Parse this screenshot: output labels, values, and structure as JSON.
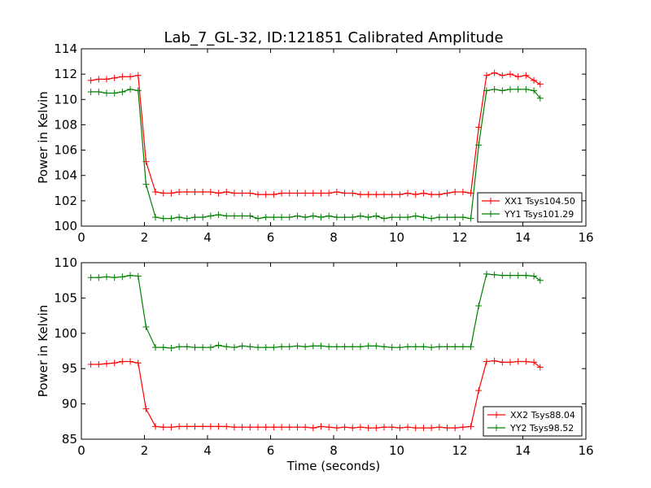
{
  "chart_data": [
    {
      "type": "line",
      "title": "Lab_7_GL-32, ID:121851 Calibrated Amplitude",
      "xlabel": "",
      "ylabel": "Power in Kelvin",
      "xlim": [
        0,
        16
      ],
      "ylim": [
        100,
        114
      ],
      "xticks": [
        "0",
        "2",
        "4",
        "6",
        "8",
        "10",
        "12",
        "14",
        "16"
      ],
      "yticks": [
        "100",
        "102",
        "104",
        "106",
        "108",
        "110",
        "112",
        "114"
      ],
      "grid": false,
      "legend_position": "lower-right",
      "x": [
        0.3,
        0.55,
        0.8,
        1.05,
        1.3,
        1.55,
        1.8,
        2.05,
        2.35,
        2.6,
        2.85,
        3.1,
        3.35,
        3.6,
        3.85,
        4.1,
        4.35,
        4.6,
        4.85,
        5.1,
        5.35,
        5.6,
        5.85,
        6.1,
        6.35,
        6.6,
        6.85,
        7.1,
        7.35,
        7.6,
        7.85,
        8.1,
        8.35,
        8.6,
        8.85,
        9.1,
        9.35,
        9.6,
        9.85,
        10.1,
        10.35,
        10.6,
        10.85,
        11.1,
        11.35,
        11.6,
        11.85,
        12.1,
        12.35,
        12.6,
        12.85,
        13.1,
        13.35,
        13.6,
        13.85,
        14.1,
        14.35,
        14.55
      ],
      "series": [
        {
          "name": "XX1 Tsys104.50",
          "color": "#ff0000",
          "values": [
            111.5,
            111.6,
            111.6,
            111.7,
            111.8,
            111.8,
            111.9,
            105.1,
            102.7,
            102.6,
            102.6,
            102.7,
            102.7,
            102.7,
            102.7,
            102.7,
            102.6,
            102.7,
            102.6,
            102.6,
            102.6,
            102.5,
            102.5,
            102.5,
            102.6,
            102.6,
            102.6,
            102.6,
            102.6,
            102.6,
            102.6,
            102.7,
            102.6,
            102.6,
            102.5,
            102.5,
            102.5,
            102.5,
            102.5,
            102.5,
            102.6,
            102.5,
            102.6,
            102.5,
            102.5,
            102.6,
            102.7,
            102.7,
            102.6,
            107.8,
            111.9,
            112.1,
            111.9,
            112.0,
            111.8,
            111.9,
            111.5,
            111.2
          ]
        },
        {
          "name": "YY1 Tsys101.29",
          "color": "#008000",
          "values": [
            110.6,
            110.6,
            110.5,
            110.5,
            110.6,
            110.8,
            110.7,
            103.3,
            100.7,
            100.6,
            100.6,
            100.7,
            100.6,
            100.7,
            100.7,
            100.8,
            100.9,
            100.8,
            100.8,
            100.8,
            100.8,
            100.6,
            100.7,
            100.7,
            100.7,
            100.7,
            100.8,
            100.7,
            100.8,
            100.7,
            100.8,
            100.7,
            100.7,
            100.7,
            100.8,
            100.7,
            100.8,
            100.6,
            100.7,
            100.7,
            100.7,
            100.8,
            100.7,
            100.6,
            100.7,
            100.7,
            100.7,
            100.7,
            100.6,
            106.4,
            110.7,
            110.8,
            110.7,
            110.8,
            110.8,
            110.8,
            110.7,
            110.1
          ]
        }
      ]
    },
    {
      "type": "line",
      "title": "",
      "xlabel": "Time (seconds)",
      "ylabel": "Power in Kelvin",
      "xlim": [
        0,
        16
      ],
      "ylim": [
        85,
        110
      ],
      "xticks": [
        "0",
        "2",
        "4",
        "6",
        "8",
        "10",
        "12",
        "14",
        "16"
      ],
      "yticks": [
        "85",
        "90",
        "95",
        "100",
        "105",
        "110"
      ],
      "grid": false,
      "legend_position": "lower-right",
      "x": [
        0.3,
        0.55,
        0.8,
        1.05,
        1.3,
        1.55,
        1.8,
        2.05,
        2.35,
        2.6,
        2.85,
        3.1,
        3.35,
        3.6,
        3.85,
        4.1,
        4.35,
        4.6,
        4.85,
        5.1,
        5.35,
        5.6,
        5.85,
        6.1,
        6.35,
        6.6,
        6.85,
        7.1,
        7.35,
        7.6,
        7.85,
        8.1,
        8.35,
        8.6,
        8.85,
        9.1,
        9.35,
        9.6,
        9.85,
        10.1,
        10.35,
        10.6,
        10.85,
        11.1,
        11.35,
        11.6,
        11.85,
        12.1,
        12.35,
        12.6,
        12.85,
        13.1,
        13.35,
        13.6,
        13.85,
        14.1,
        14.35,
        14.55
      ],
      "series": [
        {
          "name": "XX2 Tsys88.04",
          "color": "#ff0000",
          "values": [
            95.6,
            95.6,
            95.7,
            95.8,
            96.0,
            96.0,
            95.8,
            89.3,
            86.8,
            86.7,
            86.7,
            86.8,
            86.8,
            86.8,
            86.8,
            86.8,
            86.8,
            86.8,
            86.7,
            86.7,
            86.7,
            86.7,
            86.7,
            86.7,
            86.7,
            86.7,
            86.7,
            86.7,
            86.6,
            86.8,
            86.7,
            86.6,
            86.7,
            86.6,
            86.7,
            86.6,
            86.6,
            86.7,
            86.7,
            86.6,
            86.7,
            86.6,
            86.6,
            86.6,
            86.7,
            86.6,
            86.6,
            86.7,
            86.8,
            91.9,
            96.0,
            96.1,
            95.9,
            95.9,
            96.0,
            96.0,
            95.9,
            95.2
          ]
        },
        {
          "name": "YY2 Tsys98.52",
          "color": "#008000",
          "values": [
            107.9,
            107.9,
            108.0,
            107.9,
            108.0,
            108.2,
            108.1,
            100.9,
            98.0,
            98.0,
            97.9,
            98.1,
            98.1,
            98.0,
            98.0,
            98.0,
            98.3,
            98.1,
            98.0,
            98.2,
            98.1,
            98.0,
            98.0,
            98.0,
            98.1,
            98.1,
            98.2,
            98.1,
            98.2,
            98.2,
            98.1,
            98.1,
            98.1,
            98.1,
            98.1,
            98.2,
            98.2,
            98.1,
            98.0,
            98.0,
            98.1,
            98.1,
            98.1,
            98.0,
            98.1,
            98.1,
            98.1,
            98.1,
            98.1,
            103.9,
            108.4,
            108.3,
            108.2,
            108.2,
            108.2,
            108.2,
            108.1,
            107.5
          ]
        }
      ]
    }
  ]
}
